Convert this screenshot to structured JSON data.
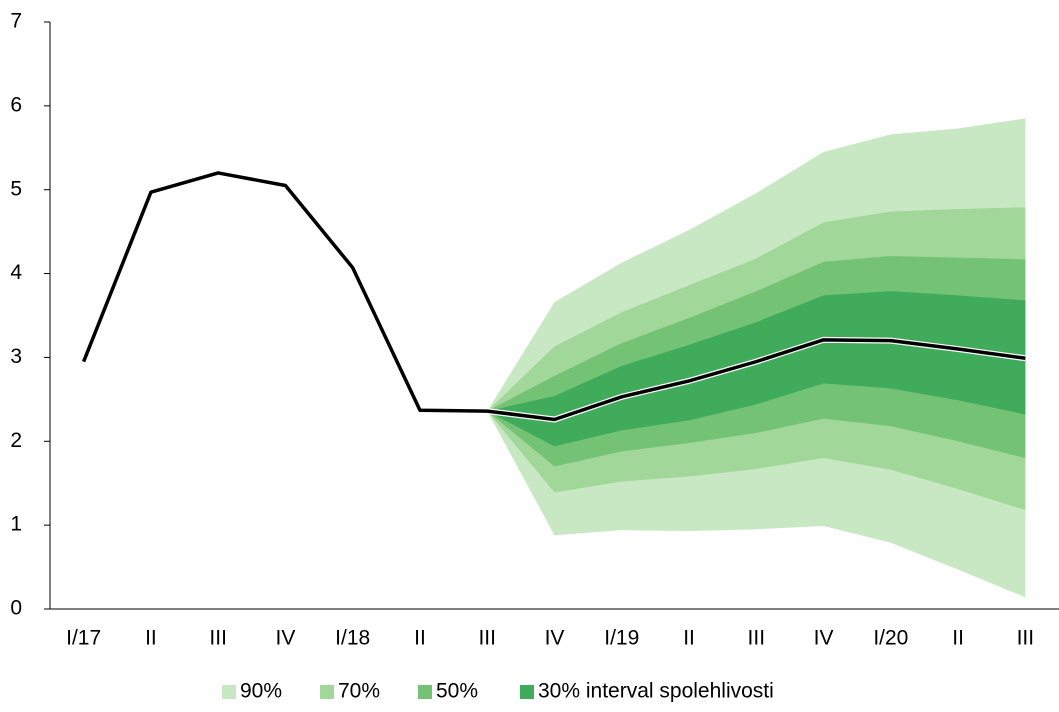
{
  "chart_data": {
    "type": "line",
    "categories": [
      "I/17",
      "II",
      "III",
      "IV",
      "I/18",
      "II",
      "III",
      "IV",
      "I/19",
      "II",
      "III",
      "IV",
      "I/20",
      "II",
      "III"
    ],
    "values": [
      2.95,
      4.97,
      5.2,
      5.05,
      4.07,
      2.37,
      2.36,
      2.26,
      2.53,
      2.72,
      2.95,
      3.21,
      3.2,
      3.1,
      2.99
    ],
    "color": "#000000",
    "bands": [
      {
        "name": "90%",
        "color": "#c8e8c4",
        "upper": [
          null,
          null,
          null,
          null,
          null,
          null,
          2.36,
          3.66,
          4.13,
          4.52,
          4.96,
          5.45,
          5.66,
          5.73,
          5.85
        ],
        "lower": [
          null,
          null,
          null,
          null,
          null,
          null,
          2.36,
          0.88,
          0.94,
          0.93,
          0.95,
          0.99,
          0.79,
          0.47,
          0.14
        ]
      },
      {
        "name": "70%",
        "color": "#a2d79a",
        "upper": [
          null,
          null,
          null,
          null,
          null,
          null,
          2.36,
          3.13,
          3.54,
          3.86,
          4.18,
          4.61,
          4.74,
          4.77,
          4.79
        ],
        "lower": [
          null,
          null,
          null,
          null,
          null,
          null,
          2.36,
          1.39,
          1.52,
          1.58,
          1.67,
          1.8,
          1.66,
          1.43,
          1.18
        ]
      },
      {
        "name": "50%",
        "color": "#74c374",
        "upper": [
          null,
          null,
          null,
          null,
          null,
          null,
          2.36,
          2.78,
          3.17,
          3.47,
          3.79,
          4.14,
          4.21,
          4.19,
          4.17
        ],
        "lower": [
          null,
          null,
          null,
          null,
          null,
          null,
          2.36,
          1.7,
          1.88,
          1.98,
          2.1,
          2.27,
          2.18,
          2.0,
          1.8
        ]
      },
      {
        "name": "30% interval spolehlivosti",
        "color": "#3fab5b",
        "upper": [
          null,
          null,
          null,
          null,
          null,
          null,
          2.36,
          2.54,
          2.9,
          3.15,
          3.42,
          3.74,
          3.79,
          3.74,
          3.68
        ],
        "lower": [
          null,
          null,
          null,
          null,
          null,
          null,
          2.36,
          1.94,
          2.13,
          2.25,
          2.44,
          2.69,
          2.63,
          2.49,
          2.32
        ]
      }
    ],
    "ylim": [
      0,
      7
    ],
    "yticks": [
      0,
      1,
      2,
      3,
      4,
      5,
      6,
      7
    ],
    "grid": false,
    "legend": "bottom"
  }
}
